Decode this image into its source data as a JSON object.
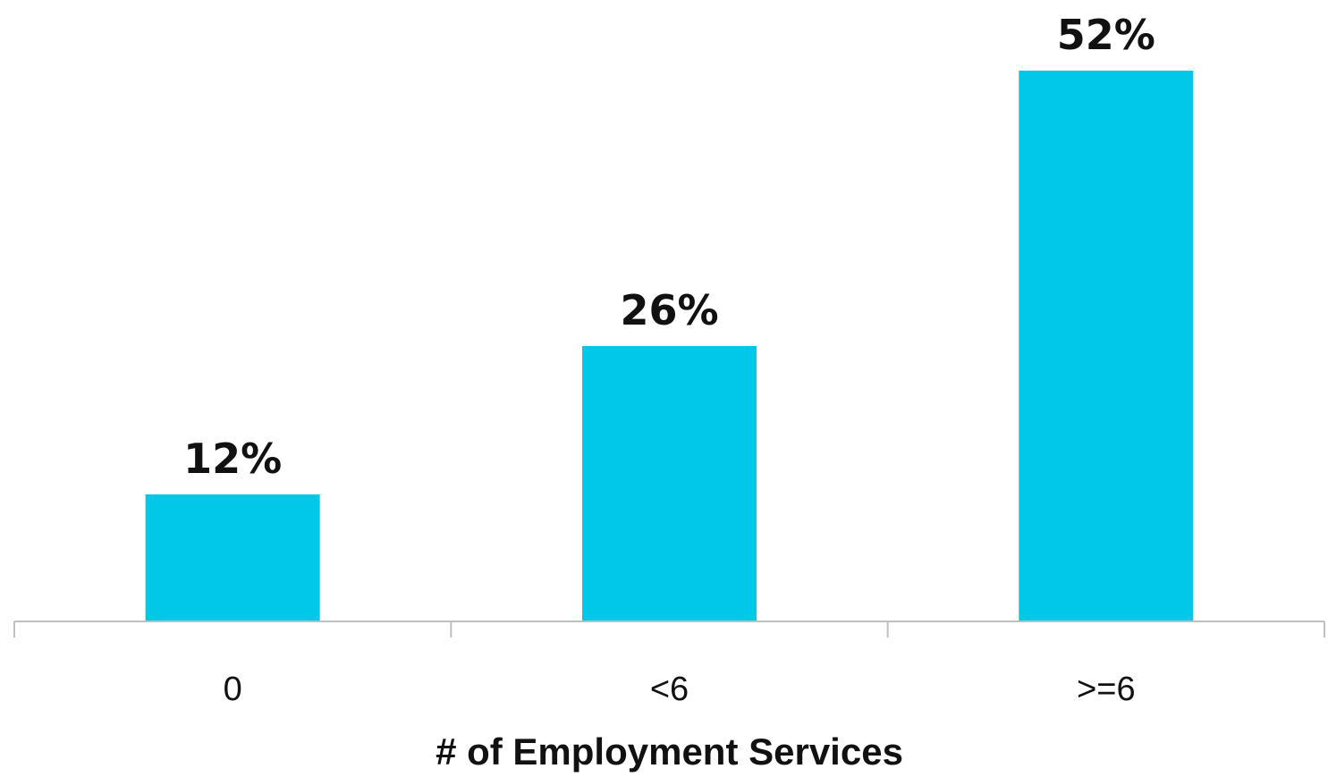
{
  "chart_data": {
    "type": "bar",
    "categories": [
      "0",
      "<6",
      ">=6"
    ],
    "values": [
      12,
      26,
      52
    ],
    "data_labels": [
      "12%",
      "26%",
      "52%"
    ],
    "title": "",
    "xlabel": "# of Employment Services",
    "ylabel": "",
    "ylim": [
      0,
      52
    ],
    "grid": false,
    "legend": "none",
    "colors": {
      "bar": "#00C8E6",
      "axis": "#BFBFBF",
      "text": "#111111"
    }
  }
}
